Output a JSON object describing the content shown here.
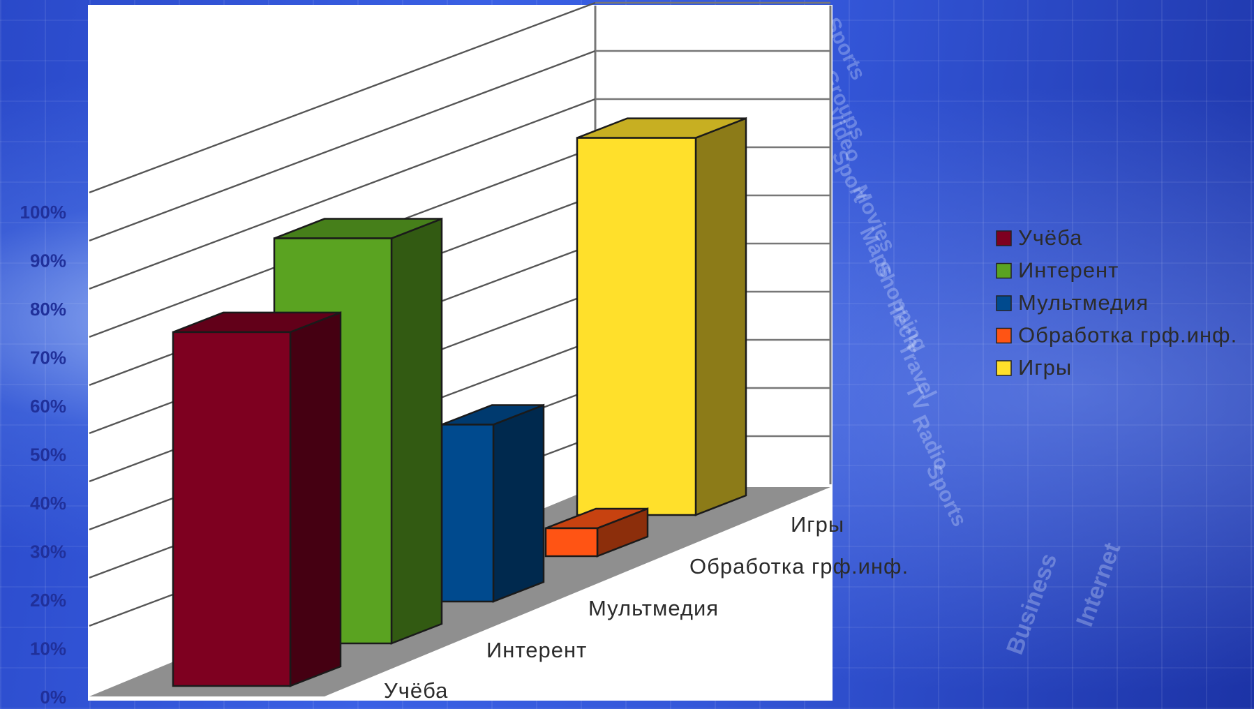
{
  "chart_data": {
    "type": "bar",
    "categories": [
      "Учёба",
      "Интерент",
      "Мультмедия",
      "Обработка грф.инф.",
      "Игры"
    ],
    "values": [
      76,
      87,
      38,
      6,
      81
    ],
    "colors": [
      "#7e0020",
      "#5aa321",
      "#004a8e",
      "#ff5414",
      "#ffe02b"
    ],
    "ylim": [
      0,
      100
    ],
    "yticks": [
      "0%",
      "10%",
      "20%",
      "30%",
      "40%",
      "50%",
      "60%",
      "70%",
      "80%",
      "90%",
      "100%"
    ],
    "legend": [
      "Учёба",
      "Интерент",
      "Мультмедия",
      "Обработка грф.инф.",
      "Игры"
    ],
    "legend_position": "right",
    "grid": true,
    "style": "3d-column"
  },
  "background_words": [
    "Sports",
    "Groups",
    "Video",
    "Sport",
    "Movies",
    "Maps",
    "Shopping",
    "Tech",
    "Travel",
    "TV",
    "Radio",
    "Sports",
    "Business",
    "Internet"
  ]
}
